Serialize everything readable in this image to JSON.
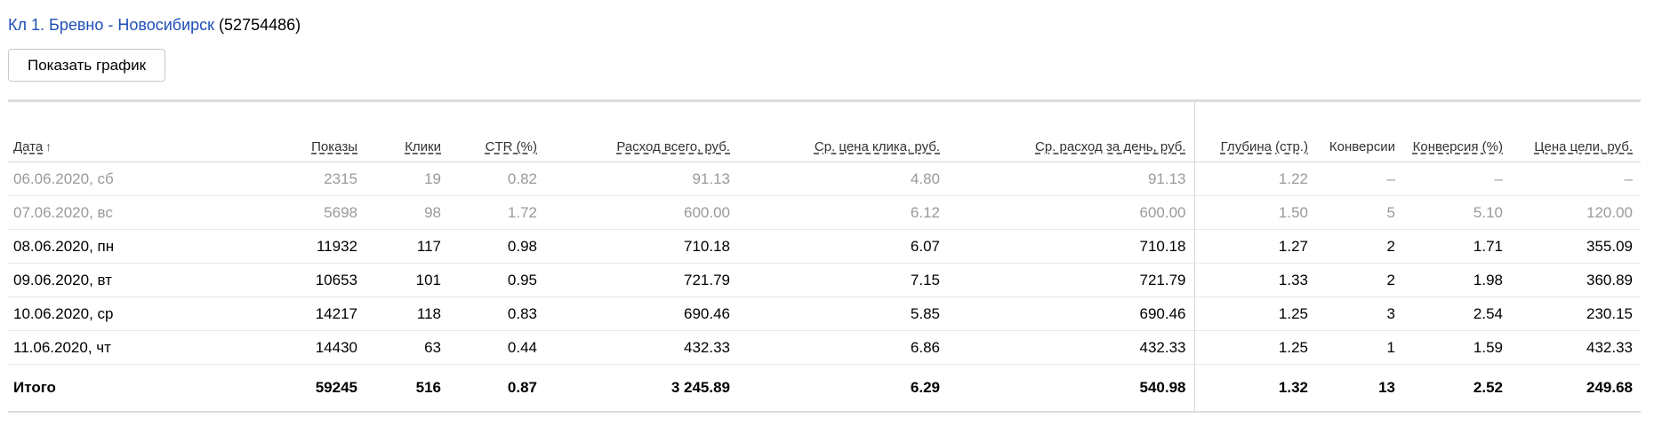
{
  "campaign": {
    "name": "Кл 1. Бревно - Новосибирск",
    "id": "(52754486)"
  },
  "actions": {
    "show_chart_label": "Показать график"
  },
  "table": {
    "sort_arrow": "↑",
    "columns": [
      {
        "key": "date",
        "label": "Дата"
      },
      {
        "key": "shows",
        "label": "Показы"
      },
      {
        "key": "clicks",
        "label": "Клики"
      },
      {
        "key": "ctr",
        "label": "CTR (%)"
      },
      {
        "key": "spend_total",
        "label": "Расход всего, руб."
      },
      {
        "key": "avg_cpc",
        "label": "Ср. цена клика, руб."
      },
      {
        "key": "avg_daily_spend",
        "label": "Ср. расход за день, руб."
      },
      {
        "key": "depth",
        "label": "Глубина (стр.)"
      },
      {
        "key": "conversions",
        "label": "Конверсии"
      },
      {
        "key": "conversion_rate",
        "label": "Конверсия (%)"
      },
      {
        "key": "goal_cost",
        "label": "Цена цели, руб."
      }
    ],
    "rows": [
      {
        "weekend": true,
        "cells": [
          "06.06.2020, сб",
          "2315",
          "19",
          "0.82",
          "91.13",
          "4.80",
          "91.13",
          "1.22",
          "–",
          "–",
          "–"
        ]
      },
      {
        "weekend": true,
        "cells": [
          "07.06.2020, вс",
          "5698",
          "98",
          "1.72",
          "600.00",
          "6.12",
          "600.00",
          "1.50",
          "5",
          "5.10",
          "120.00"
        ]
      },
      {
        "weekend": false,
        "cells": [
          "08.06.2020, пн",
          "11932",
          "117",
          "0.98",
          "710.18",
          "6.07",
          "710.18",
          "1.27",
          "2",
          "1.71",
          "355.09"
        ]
      },
      {
        "weekend": false,
        "cells": [
          "09.06.2020, вт",
          "10653",
          "101",
          "0.95",
          "721.79",
          "7.15",
          "721.79",
          "1.33",
          "2",
          "1.98",
          "360.89"
        ]
      },
      {
        "weekend": false,
        "cells": [
          "10.06.2020, ср",
          "14217",
          "118",
          "0.83",
          "690.46",
          "5.85",
          "690.46",
          "1.25",
          "3",
          "2.54",
          "230.15"
        ]
      },
      {
        "weekend": false,
        "cells": [
          "11.06.2020, чт",
          "14430",
          "63",
          "0.44",
          "432.33",
          "6.86",
          "432.33",
          "1.25",
          "1",
          "1.59",
          "432.33"
        ]
      }
    ],
    "total": [
      "Итого",
      "59245",
      "516",
      "0.87",
      "3 245.89",
      "6.29",
      "540.98",
      "1.32",
      "13",
      "2.52",
      "249.68"
    ]
  }
}
